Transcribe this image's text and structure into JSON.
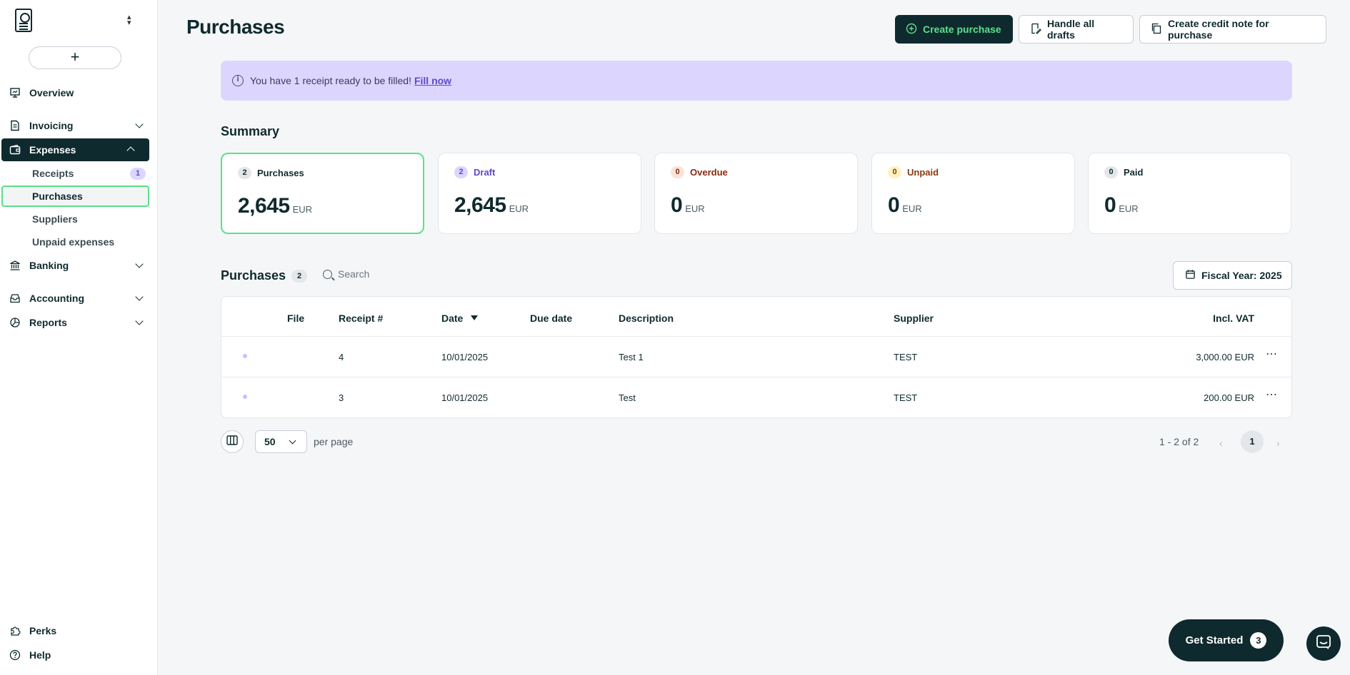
{
  "sidebar": {
    "new_button": "+",
    "items": [
      {
        "label": "Overview"
      },
      {
        "label": "Invoicing"
      },
      {
        "label": "Expenses"
      },
      {
        "label": "Banking"
      },
      {
        "label": "Accounting"
      },
      {
        "label": "Reports"
      }
    ],
    "expenses_sub": [
      {
        "label": "Receipts",
        "badge": "1"
      },
      {
        "label": "Purchases"
      },
      {
        "label": "Suppliers"
      },
      {
        "label": "Unpaid expenses"
      }
    ],
    "bottom": [
      {
        "label": "Perks"
      },
      {
        "label": "Help"
      }
    ]
  },
  "header": {
    "title": "Purchases",
    "create_purchase": "Create purchase",
    "handle_drafts": "Handle all drafts",
    "credit_note": "Create credit note for purchase"
  },
  "banner": {
    "text": "You have 1 receipt ready to be filled!",
    "link": "Fill now"
  },
  "summary": {
    "title": "Summary",
    "cards": [
      {
        "count": "2",
        "label": "Purchases",
        "value": "2,645",
        "currency": "EUR",
        "color": "#0f2a2e",
        "badge_bg": "#e4e7ea"
      },
      {
        "count": "2",
        "label": "Draft",
        "value": "2,645",
        "currency": "EUR",
        "color": "#5a49c9",
        "badge_bg": "#dcd6ff"
      },
      {
        "count": "0",
        "label": "Overdue",
        "value": "0",
        "currency": "EUR",
        "color": "#8a2a10",
        "badge_bg": "#fbe3d8"
      },
      {
        "count": "0",
        "label": "Unpaid",
        "value": "0",
        "currency": "EUR",
        "color": "#8a3a10",
        "badge_bg": "#fff1c2"
      },
      {
        "count": "0",
        "label": "Paid",
        "value": "0",
        "currency": "EUR",
        "color": "#0f2a2e",
        "badge_bg": "#e4e7ea"
      }
    ]
  },
  "list": {
    "title": "Purchases",
    "count": "2",
    "search_placeholder": "Search",
    "fiscal_year": "Fiscal Year: 2025",
    "columns": {
      "file": "File",
      "receipt": "Receipt #",
      "date": "Date",
      "due": "Due date",
      "description": "Description",
      "supplier": "Supplier",
      "vat": "Incl. VAT"
    },
    "rows": [
      {
        "receipt": "4",
        "date": "10/01/2025",
        "due": "",
        "description": "Test 1",
        "supplier": "TEST",
        "vat": "3,000.00 EUR"
      },
      {
        "receipt": "3",
        "date": "10/01/2025",
        "due": "",
        "description": "Test",
        "supplier": "TEST",
        "vat": "200.00 EUR"
      }
    ]
  },
  "pagination": {
    "per_page_value": "50",
    "per_page_label": "per page",
    "range": "1 - 2 of 2",
    "current_page": "1"
  },
  "get_started": {
    "label": "Get Started",
    "count": "3"
  },
  "colors": {
    "primary": "#0f2a2e",
    "accent": "#5ae08a",
    "banner": "#dcd6ff"
  }
}
